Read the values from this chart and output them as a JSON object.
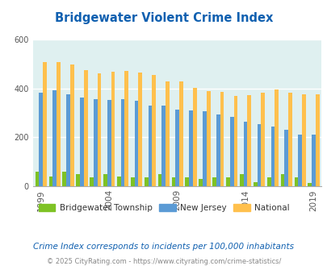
{
  "title": "Bridgewater Violent Crime Index",
  "years": [
    1999,
    2000,
    2001,
    2002,
    2003,
    2004,
    2005,
    2006,
    2007,
    2008,
    2009,
    2010,
    2011,
    2012,
    2013,
    2014,
    2015,
    2016,
    2017,
    2018,
    2019
  ],
  "bridgewater": [
    60,
    40,
    58,
    48,
    38,
    48,
    40,
    38,
    38,
    50,
    35,
    38,
    30,
    38,
    38,
    48,
    18,
    38,
    48,
    38,
    12
  ],
  "new_jersey": [
    385,
    395,
    378,
    365,
    358,
    355,
    358,
    350,
    330,
    330,
    315,
    310,
    308,
    295,
    285,
    263,
    253,
    243,
    230,
    210,
    210
  ],
  "national": [
    510,
    510,
    500,
    477,
    462,
    468,
    473,
    465,
    455,
    430,
    430,
    404,
    390,
    388,
    370,
    375,
    383,
    398,
    385,
    378,
    378
  ],
  "colors": {
    "bridgewater": "#7ec225",
    "new_jersey": "#5b9bd5",
    "national": "#ffc04d"
  },
  "ylim": [
    0,
    600
  ],
  "yticks": [
    0,
    200,
    400,
    600
  ],
  "background_color": "#dff0f0",
  "title_color": "#1060b0",
  "legend_labels": [
    "Bridgewater Township",
    "New Jersey",
    "National"
  ],
  "subtitle": "Crime Index corresponds to incidents per 100,000 inhabitants",
  "footer": "© 2025 CityRating.com - https://www.cityrating.com/crime-statistics/",
  "subtitle_color": "#1060b0",
  "footer_color": "#888888",
  "tick_years": [
    1999,
    2004,
    2009,
    2014,
    2019
  ]
}
